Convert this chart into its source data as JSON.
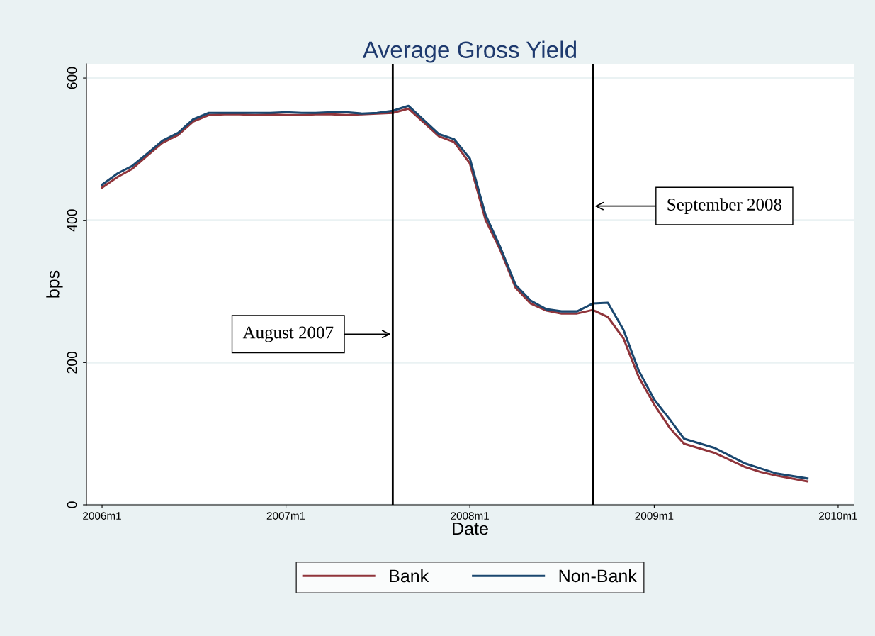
{
  "chart_data": {
    "type": "line",
    "title": "Average Gross Yield",
    "xlabel": "Date",
    "ylabel": "bps",
    "x": [
      "2006-01",
      "2006-02",
      "2006-03",
      "2006-04",
      "2006-05",
      "2006-06",
      "2006-07",
      "2006-08",
      "2006-09",
      "2006-10",
      "2006-11",
      "2006-12",
      "2007-01",
      "2007-02",
      "2007-03",
      "2007-04",
      "2007-05",
      "2007-06",
      "2007-07",
      "2007-08",
      "2007-09",
      "2007-11",
      "2007-12",
      "2008-01",
      "2008-02",
      "2008-03",
      "2008-04",
      "2008-05",
      "2008-06",
      "2008-07",
      "2008-08",
      "2008-09",
      "2008-10",
      "2008-11",
      "2008-12",
      "2009-01",
      "2009-02",
      "2009-03",
      "2009-05",
      "2009-07",
      "2009-08",
      "2009-09",
      "2009-11"
    ],
    "series": [
      {
        "name": "Bank",
        "color": "#90353b",
        "values": [
          446,
          461,
          472,
          491,
          509,
          520,
          539,
          548,
          549,
          549,
          548,
          549,
          548,
          548,
          549,
          549,
          548,
          549,
          550,
          551,
          557,
          518,
          510,
          480,
          401,
          359,
          305,
          283,
          273,
          269,
          269,
          274,
          264,
          234,
          180,
          141,
          108,
          86,
          73,
          53,
          46,
          41,
          33
        ]
      },
      {
        "name": "Non-Bank",
        "color": "#1a476f",
        "values": [
          450,
          466,
          476,
          494,
          512,
          523,
          542,
          551,
          551,
          551,
          551,
          551,
          552,
          551,
          551,
          552,
          552,
          550,
          551,
          554,
          561,
          521,
          514,
          487,
          408,
          363,
          309,
          287,
          275,
          272,
          272,
          283,
          284,
          246,
          189,
          148,
          120,
          93,
          80,
          58,
          51,
          44,
          37
        ]
      }
    ],
    "xlim": [
      "2005-12",
      "2010-02"
    ],
    "xticks": [
      {
        "value": "2006-01",
        "label": "2006m1"
      },
      {
        "value": "2007-01",
        "label": "2007m1"
      },
      {
        "value": "2008-01",
        "label": "2008m1"
      },
      {
        "value": "2009-01",
        "label": "2009m1"
      },
      {
        "value": "2010-01",
        "label": "2010m1"
      }
    ],
    "ylim": [
      0,
      620
    ],
    "yticks": [
      0,
      200,
      400,
      600
    ],
    "ref_lines": [
      {
        "axis": "x",
        "value": "2007-08",
        "color": "#000000"
      },
      {
        "axis": "x",
        "value": "2008-09",
        "color": "#000000"
      }
    ],
    "annotations": [
      {
        "text": "August 2007",
        "x": "2007-08",
        "y": 240
      },
      {
        "text": "September 2008",
        "x": "2008-09",
        "y": 420
      }
    ],
    "grid": "y",
    "legend": "bottom",
    "line_style": "solid",
    "marker": "none"
  }
}
